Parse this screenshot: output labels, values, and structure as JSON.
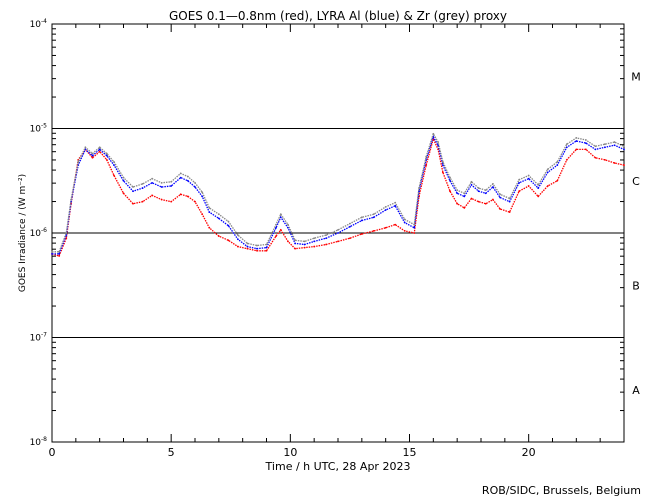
{
  "chart_data": {
    "type": "line",
    "title": "GOES 0.1—0.8nm (red), LYRA Al (blue) & Zr (grey) proxy",
    "xlabel": "Time / h UTC, 28 Apr 2023",
    "ylabel": "GOES Irradiance / (W m⁻²)",
    "xlim": [
      0,
      24
    ],
    "ylim_log10": [
      -8,
      -4
    ],
    "x_ticks": [
      0,
      5,
      10,
      15,
      20
    ],
    "y_tick_labels": [
      {
        "base": "10",
        "exp": "-4"
      },
      {
        "base": "10",
        "exp": "-5"
      },
      {
        "base": "10",
        "exp": "-6"
      },
      {
        "base": "10",
        "exp": "-7"
      },
      {
        "base": "10",
        "exp": "-8"
      }
    ],
    "y_tick_log10": [
      -4,
      -5,
      -6,
      -7,
      -8
    ],
    "flare_class_lines_log10": [
      -5,
      -6,
      -7
    ],
    "flare_classes": [
      {
        "label": "M",
        "log10": -4.5
      },
      {
        "label": "C",
        "log10": -5.5
      },
      {
        "label": "B",
        "log10": -6.5
      },
      {
        "label": "A",
        "log10": -7.5
      }
    ],
    "footer": "ROB/SIDC, Brussels, Belgium",
    "series": [
      {
        "name": "GOES 0.1-0.8nm",
        "color": "#ff0000",
        "points": [
          [
            0,
            -6.2
          ],
          [
            0.3,
            -6.22
          ],
          [
            0.6,
            -6.05
          ],
          [
            0.8,
            -5.72
          ],
          [
            1.1,
            -5.3
          ],
          [
            1.4,
            -5.2
          ],
          [
            1.7,
            -5.28
          ],
          [
            2.0,
            -5.22
          ],
          [
            2.3,
            -5.3
          ],
          [
            2.6,
            -5.45
          ],
          [
            3.0,
            -5.62
          ],
          [
            3.4,
            -5.72
          ],
          [
            3.8,
            -5.7
          ],
          [
            4.2,
            -5.64
          ],
          [
            4.6,
            -5.68
          ],
          [
            5.0,
            -5.7
          ],
          [
            5.4,
            -5.63
          ],
          [
            5.7,
            -5.65
          ],
          [
            6.0,
            -5.7
          ],
          [
            6.3,
            -5.82
          ],
          [
            6.6,
            -5.95
          ],
          [
            7.0,
            -6.03
          ],
          [
            7.4,
            -6.07
          ],
          [
            7.8,
            -6.13
          ],
          [
            8.2,
            -6.15
          ],
          [
            8.6,
            -6.17
          ],
          [
            9.0,
            -6.17
          ],
          [
            9.4,
            -6.03
          ],
          [
            9.6,
            -5.97
          ],
          [
            9.9,
            -6.08
          ],
          [
            10.2,
            -6.15
          ],
          [
            10.6,
            -6.14
          ],
          [
            11.0,
            -6.13
          ],
          [
            11.5,
            -6.11
          ],
          [
            12.0,
            -6.08
          ],
          [
            12.5,
            -6.05
          ],
          [
            13.0,
            -6.01
          ],
          [
            13.5,
            -5.98
          ],
          [
            14.0,
            -5.95
          ],
          [
            14.4,
            -5.92
          ],
          [
            14.8,
            -5.98
          ],
          [
            15.2,
            -6.0
          ],
          [
            15.4,
            -5.65
          ],
          [
            15.7,
            -5.35
          ],
          [
            16.0,
            -5.1
          ],
          [
            16.2,
            -5.2
          ],
          [
            16.4,
            -5.42
          ],
          [
            16.7,
            -5.6
          ],
          [
            17.0,
            -5.72
          ],
          [
            17.3,
            -5.76
          ],
          [
            17.6,
            -5.67
          ],
          [
            17.9,
            -5.7
          ],
          [
            18.2,
            -5.72
          ],
          [
            18.5,
            -5.68
          ],
          [
            18.8,
            -5.77
          ],
          [
            19.2,
            -5.8
          ],
          [
            19.6,
            -5.6
          ],
          [
            20.0,
            -5.55
          ],
          [
            20.4,
            -5.65
          ],
          [
            20.8,
            -5.55
          ],
          [
            21.2,
            -5.5
          ],
          [
            21.6,
            -5.3
          ],
          [
            22.0,
            -5.2
          ],
          [
            22.4,
            -5.2
          ],
          [
            22.8,
            -5.28
          ],
          [
            23.2,
            -5.3
          ],
          [
            23.6,
            -5.33
          ],
          [
            24.0,
            -5.35
          ]
        ]
      },
      {
        "name": "LYRA Al proxy",
        "color": "#0000ff",
        "points": [
          [
            0,
            -6.2
          ],
          [
            0.3,
            -6.2
          ],
          [
            0.6,
            -6.02
          ],
          [
            0.8,
            -5.7
          ],
          [
            1.1,
            -5.35
          ],
          [
            1.4,
            -5.2
          ],
          [
            1.7,
            -5.26
          ],
          [
            2.0,
            -5.2
          ],
          [
            2.3,
            -5.26
          ],
          [
            2.6,
            -5.35
          ],
          [
            3.0,
            -5.5
          ],
          [
            3.4,
            -5.6
          ],
          [
            3.8,
            -5.57
          ],
          [
            4.2,
            -5.52
          ],
          [
            4.6,
            -5.56
          ],
          [
            5.0,
            -5.55
          ],
          [
            5.4,
            -5.47
          ],
          [
            5.7,
            -5.5
          ],
          [
            6.0,
            -5.56
          ],
          [
            6.3,
            -5.65
          ],
          [
            6.6,
            -5.8
          ],
          [
            7.0,
            -5.86
          ],
          [
            7.4,
            -5.93
          ],
          [
            7.8,
            -6.06
          ],
          [
            8.2,
            -6.13
          ],
          [
            8.6,
            -6.15
          ],
          [
            9.0,
            -6.14
          ],
          [
            9.4,
            -5.95
          ],
          [
            9.6,
            -5.85
          ],
          [
            9.9,
            -5.95
          ],
          [
            10.2,
            -6.1
          ],
          [
            10.6,
            -6.11
          ],
          [
            11.0,
            -6.08
          ],
          [
            11.5,
            -6.05
          ],
          [
            12.0,
            -6.0
          ],
          [
            12.5,
            -5.94
          ],
          [
            13.0,
            -5.88
          ],
          [
            13.5,
            -5.85
          ],
          [
            14.0,
            -5.78
          ],
          [
            14.4,
            -5.74
          ],
          [
            14.8,
            -5.9
          ],
          [
            15.2,
            -5.95
          ],
          [
            15.4,
            -5.6
          ],
          [
            15.7,
            -5.3
          ],
          [
            16.0,
            -5.08
          ],
          [
            16.2,
            -5.16
          ],
          [
            16.4,
            -5.35
          ],
          [
            16.7,
            -5.5
          ],
          [
            17.0,
            -5.62
          ],
          [
            17.3,
            -5.65
          ],
          [
            17.6,
            -5.54
          ],
          [
            17.9,
            -5.6
          ],
          [
            18.2,
            -5.62
          ],
          [
            18.5,
            -5.56
          ],
          [
            18.8,
            -5.66
          ],
          [
            19.2,
            -5.7
          ],
          [
            19.6,
            -5.52
          ],
          [
            20.0,
            -5.48
          ],
          [
            20.4,
            -5.57
          ],
          [
            20.8,
            -5.42
          ],
          [
            21.2,
            -5.35
          ],
          [
            21.6,
            -5.18
          ],
          [
            22.0,
            -5.12
          ],
          [
            22.4,
            -5.14
          ],
          [
            22.8,
            -5.2
          ],
          [
            23.2,
            -5.18
          ],
          [
            23.6,
            -5.16
          ],
          [
            24.0,
            -5.2
          ]
        ]
      },
      {
        "name": "LYRA Zr proxy",
        "color": "#888888",
        "points": [
          [
            0,
            -6.18
          ],
          [
            0.3,
            -6.18
          ],
          [
            0.6,
            -6.0
          ],
          [
            0.8,
            -5.68
          ],
          [
            1.1,
            -5.32
          ],
          [
            1.4,
            -5.18
          ],
          [
            1.7,
            -5.24
          ],
          [
            2.0,
            -5.18
          ],
          [
            2.3,
            -5.24
          ],
          [
            2.6,
            -5.32
          ],
          [
            3.0,
            -5.47
          ],
          [
            3.4,
            -5.56
          ],
          [
            3.8,
            -5.53
          ],
          [
            4.2,
            -5.48
          ],
          [
            4.6,
            -5.52
          ],
          [
            5.0,
            -5.51
          ],
          [
            5.4,
            -5.43
          ],
          [
            5.7,
            -5.46
          ],
          [
            6.0,
            -5.52
          ],
          [
            6.3,
            -5.61
          ],
          [
            6.6,
            -5.76
          ],
          [
            7.0,
            -5.82
          ],
          [
            7.4,
            -5.89
          ],
          [
            7.8,
            -6.02
          ],
          [
            8.2,
            -6.1
          ],
          [
            8.6,
            -6.12
          ],
          [
            9.0,
            -6.11
          ],
          [
            9.4,
            -5.92
          ],
          [
            9.6,
            -5.82
          ],
          [
            9.9,
            -5.92
          ],
          [
            10.2,
            -6.07
          ],
          [
            10.6,
            -6.08
          ],
          [
            11.0,
            -6.05
          ],
          [
            11.5,
            -6.02
          ],
          [
            12.0,
            -5.97
          ],
          [
            12.5,
            -5.91
          ],
          [
            13.0,
            -5.85
          ],
          [
            13.5,
            -5.82
          ],
          [
            14.0,
            -5.75
          ],
          [
            14.4,
            -5.71
          ],
          [
            14.8,
            -5.87
          ],
          [
            15.2,
            -5.92
          ],
          [
            15.4,
            -5.57
          ],
          [
            15.7,
            -5.27
          ],
          [
            16.0,
            -5.05
          ],
          [
            16.2,
            -5.13
          ],
          [
            16.4,
            -5.32
          ],
          [
            16.7,
            -5.47
          ],
          [
            17.0,
            -5.59
          ],
          [
            17.3,
            -5.62
          ],
          [
            17.6,
            -5.51
          ],
          [
            17.9,
            -5.57
          ],
          [
            18.2,
            -5.59
          ],
          [
            18.5,
            -5.53
          ],
          [
            18.8,
            -5.63
          ],
          [
            19.2,
            -5.67
          ],
          [
            19.6,
            -5.49
          ],
          [
            20.0,
            -5.45
          ],
          [
            20.4,
            -5.54
          ],
          [
            20.8,
            -5.39
          ],
          [
            21.2,
            -5.32
          ],
          [
            21.6,
            -5.15
          ],
          [
            22.0,
            -5.09
          ],
          [
            22.4,
            -5.11
          ],
          [
            22.8,
            -5.17
          ],
          [
            23.2,
            -5.15
          ],
          [
            23.6,
            -5.13
          ],
          [
            24.0,
            -5.17
          ]
        ]
      }
    ]
  }
}
